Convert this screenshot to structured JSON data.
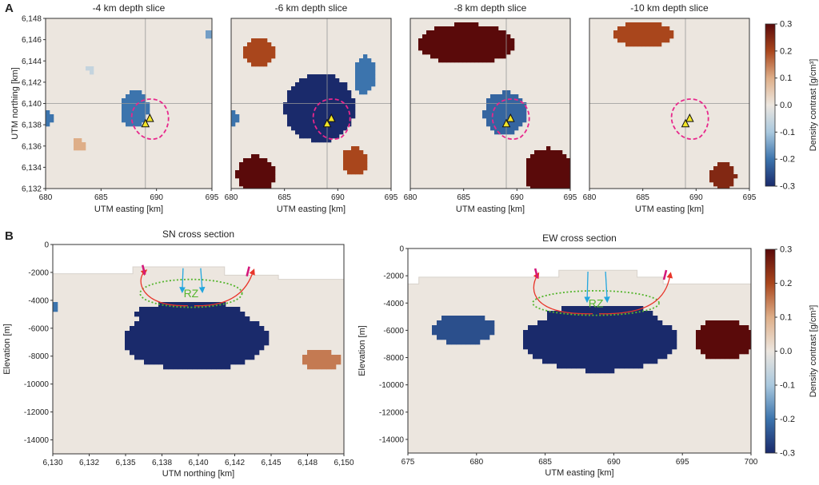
{
  "panel_labels": {
    "a": "A",
    "b": "B"
  },
  "colorbar": {
    "label": "Density contrast [g/cm³]",
    "ticks": [
      "0.3",
      "0.2",
      "0.1",
      "0.0",
      "-0.1",
      "-0.2",
      "-0.3"
    ],
    "range": [
      -0.3,
      0.3
    ],
    "colors": [
      "#1a2a6b",
      "#3c74ad",
      "#a9c8de",
      "#ece6df",
      "#deae88",
      "#a9461c",
      "#5a0a0a"
    ]
  },
  "chart_data": [
    {
      "type": "heatmap",
      "title": "-4 km depth slice",
      "xlabel": "UTM easting [km]",
      "ylabel": "UTM northing [km]",
      "xlim": [
        680,
        695
      ],
      "ylim": [
        6132,
        6148
      ],
      "xticks": [
        "680",
        "685",
        "690",
        "695"
      ],
      "yticks": [
        "6,132",
        "6,134",
        "6,136",
        "6,138",
        "6,140",
        "6,142",
        "6,144",
        "6,146",
        "6,148"
      ],
      "anomalies": [
        {
          "x": 688.0,
          "y": 6139.5,
          "rx": 1.3,
          "ry": 1.7,
          "value": -0.2
        },
        {
          "x": 689.3,
          "y": 6139.9,
          "rx": 0.8,
          "ry": 0.6,
          "value": 0.0
        },
        {
          "x": 683.0,
          "y": 6136.1,
          "rx": 0.5,
          "ry": 0.6,
          "value": 0.1
        },
        {
          "x": 680.2,
          "y": 6138.5,
          "rx": 0.4,
          "ry": 0.8,
          "value": -0.2
        },
        {
          "x": 684.1,
          "y": 6143.2,
          "rx": 0.4,
          "ry": 0.4,
          "value": -0.06
        },
        {
          "x": 694.8,
          "y": 6146.5,
          "rx": 0.3,
          "ry": 0.3,
          "value": -0.15
        }
      ]
    },
    {
      "type": "heatmap",
      "title": "-6 km depth slice",
      "xlabel": "UTM easting [km]",
      "xlim": [
        680,
        695
      ],
      "ylim": [
        6132,
        6148
      ],
      "xticks": [
        "680",
        "685",
        "690",
        "695"
      ],
      "anomalies": [
        {
          "x": 688.3,
          "y": 6139.6,
          "rx": 3.3,
          "ry": 3.2,
          "value": -0.3
        },
        {
          "x": 692.5,
          "y": 6142.7,
          "rx": 1.0,
          "ry": 1.8,
          "value": -0.2
        },
        {
          "x": 682.6,
          "y": 6144.8,
          "rx": 1.4,
          "ry": 1.3,
          "value": 0.2
        },
        {
          "x": 682.3,
          "y": 6133.3,
          "rx": 1.8,
          "ry": 1.8,
          "value": 0.3
        },
        {
          "x": 691.6,
          "y": 6134.6,
          "rx": 1.2,
          "ry": 1.3,
          "value": 0.2
        },
        {
          "x": 680.2,
          "y": 6138.5,
          "rx": 0.4,
          "ry": 0.8,
          "value": -0.2
        }
      ]
    },
    {
      "type": "heatmap",
      "title": "-8 km depth slice",
      "xlabel": "UTM easting [km]",
      "xlim": [
        680,
        695
      ],
      "ylim": [
        6132,
        6148
      ],
      "xticks": [
        "680",
        "685",
        "690",
        "695"
      ],
      "anomalies": [
        {
          "x": 685.3,
          "y": 6145.6,
          "rx": 4.5,
          "ry": 1.9,
          "value": 0.3
        },
        {
          "x": 688.9,
          "y": 6139.1,
          "rx": 2.0,
          "ry": 2.0,
          "value": -0.22
        },
        {
          "x": 693.0,
          "y": 6133.5,
          "rx": 2.3,
          "ry": 2.3,
          "value": 0.3
        }
      ]
    },
    {
      "type": "heatmap",
      "title": "-10 km depth slice",
      "xlabel": "UTM easting [km]",
      "xlim": [
        680,
        695
      ],
      "ylim": [
        6132,
        6148
      ],
      "xticks": [
        "680",
        "685",
        "690",
        "695"
      ],
      "anomalies": [
        {
          "x": 685.0,
          "y": 6146.5,
          "rx": 2.8,
          "ry": 1.2,
          "value": 0.2
        },
        {
          "x": 692.5,
          "y": 6133.2,
          "rx": 1.2,
          "ry": 1.3,
          "value": 0.25
        }
      ]
    },
    {
      "type": "heatmap",
      "title": "SN cross section",
      "xlabel": "UTM northing [km]",
      "ylabel": "Elevation [m]",
      "xlim": [
        6130,
        6150
      ],
      "ylim": [
        -15000,
        0
      ],
      "xticks": [
        "6,130",
        "6,132",
        "6,135",
        "6,138",
        "6,140",
        "6,142",
        "6,145",
        "6,148",
        "6,150"
      ],
      "yticks": [
        "0",
        "-2000",
        "-4000",
        "-6000",
        "-8000",
        "-10000",
        "-12000",
        "-14000"
      ],
      "surface": [
        [
          6130,
          -2100
        ],
        [
          6135.5,
          -2100
        ],
        [
          6135.5,
          -1600
        ],
        [
          6141.8,
          -1600
        ],
        [
          6141.8,
          -2200
        ],
        [
          6145.5,
          -2200
        ],
        [
          6145.5,
          -2500
        ],
        [
          6150,
          -2500
        ]
      ],
      "rz_label": "RZ",
      "rz": {
        "x": 6139.5,
        "y": -3500,
        "rx": 3.5,
        "ry": 1000
      },
      "anomalies": [
        {
          "x": 6139.8,
          "y": -6800,
          "rx": 5.0,
          "ry": 2200,
          "value": -0.3
        },
        {
          "x": 6139.5,
          "y": -5000,
          "rx": 3.8,
          "ry": 900,
          "value": -0.3
        },
        {
          "x": 6148.4,
          "y": -8300,
          "rx": 1.3,
          "ry": 750,
          "value": 0.15
        },
        {
          "x": 6130.1,
          "y": -4500,
          "rx": 0.4,
          "ry": 400,
          "value": -0.2
        }
      ]
    },
    {
      "type": "heatmap",
      "title": "EW cross section",
      "xlabel": "UTM easting [km]",
      "ylabel": "Elevation [m]",
      "xlim": [
        675,
        700
      ],
      "ylim": [
        -15000,
        0
      ],
      "xticks": [
        "675",
        "680",
        "685",
        "690",
        "695",
        "700"
      ],
      "yticks": [
        "0",
        "-2000",
        "-4000",
        "-6000",
        "-8000",
        "-10000",
        "-12000",
        "-14000"
      ],
      "surface": [
        [
          675,
          -2600
        ],
        [
          675.8,
          -2600
        ],
        [
          675.8,
          -2100
        ],
        [
          686.0,
          -2100
        ],
        [
          686.0,
          -1600
        ],
        [
          691.7,
          -1600
        ],
        [
          691.7,
          -2100
        ],
        [
          693.6,
          -2100
        ],
        [
          693.6,
          -2600
        ],
        [
          700,
          -2600
        ]
      ],
      "rz_label": "RZ",
      "rz": {
        "x": 688.7,
        "y": -4000,
        "rx": 4.6,
        "ry": 900
      },
      "anomalies": [
        {
          "x": 689.0,
          "y": -6700,
          "rx": 5.6,
          "ry": 2300,
          "value": -0.3
        },
        {
          "x": 689.0,
          "y": -5000,
          "rx": 4.0,
          "ry": 900,
          "value": -0.3
        },
        {
          "x": 679.1,
          "y": -5900,
          "rx": 2.3,
          "ry": 1100,
          "value": -0.25
        },
        {
          "x": 698.0,
          "y": -6700,
          "rx": 2.2,
          "ry": 1500,
          "value": 0.3
        }
      ]
    }
  ]
}
